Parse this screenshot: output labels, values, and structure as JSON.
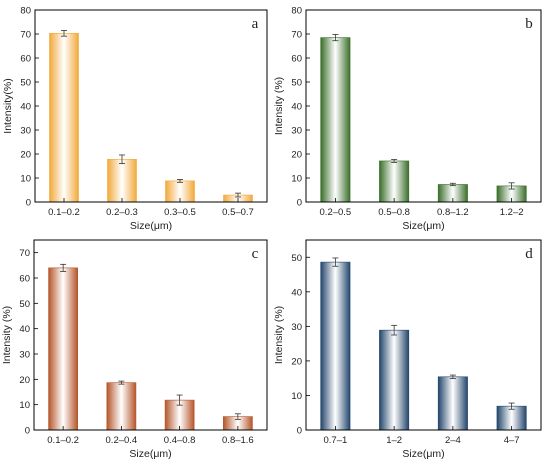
{
  "chart_data": [
    {
      "type": "bar",
      "panel_label": "a",
      "categories": [
        "0.1–0.2",
        "0.2–0.3",
        "0.3–0.5",
        "0.5–0.7"
      ],
      "values": [
        70.3,
        17.8,
        8.8,
        2.9
      ],
      "errors": [
        1.2,
        1.8,
        0.6,
        0.8
      ],
      "xlabel": "Size(μm)",
      "ylabel": "Intensity(%)",
      "ylim": [
        0,
        80
      ],
      "yticks": [
        0,
        10,
        20,
        30,
        40,
        50,
        60,
        70,
        80
      ],
      "color": "#F2A93B",
      "grid": false
    },
    {
      "type": "bar",
      "panel_label": "b",
      "categories": [
        "0.2–0.5",
        "0.5–0.8",
        "0.8–1.2",
        "1.2–2"
      ],
      "values": [
        68.5,
        17.1,
        7.3,
        6.7
      ],
      "errors": [
        1.3,
        0.6,
        0.5,
        1.3
      ],
      "xlabel": "Size(μm)",
      "ylabel": "Intensity (%)",
      "ylim": [
        0,
        80
      ],
      "yticks": [
        0,
        10,
        20,
        30,
        40,
        50,
        60,
        70,
        80
      ],
      "color": "#3B6E2A",
      "grid": false
    },
    {
      "type": "bar",
      "panel_label": "c",
      "categories": [
        "0.1–0.2",
        "0.2–0.4",
        "0.4–0.8",
        "0.8–1.6"
      ],
      "values": [
        64.0,
        18.7,
        11.8,
        5.3
      ],
      "errors": [
        1.4,
        0.6,
        2.0,
        1.1
      ],
      "xlabel": "Size(μm)",
      "ylabel": "Intensity (%)",
      "ylim": [
        0,
        75
      ],
      "yticks": [
        0,
        10,
        20,
        30,
        40,
        50,
        60,
        70
      ],
      "color": "#B5562A",
      "grid": false
    },
    {
      "type": "bar",
      "panel_label": "d",
      "categories": [
        "0.7–1",
        "1–2",
        "2–4",
        "4–7"
      ],
      "values": [
        48.6,
        28.9,
        15.4,
        6.9
      ],
      "errors": [
        1.2,
        1.4,
        0.5,
        0.9
      ],
      "xlabel": "Size(μm)",
      "ylabel": "Intensity (%)",
      "ylim": [
        0,
        55
      ],
      "yticks": [
        0,
        10,
        20,
        30,
        40,
        50
      ],
      "color": "#23466C",
      "grid": false
    }
  ]
}
